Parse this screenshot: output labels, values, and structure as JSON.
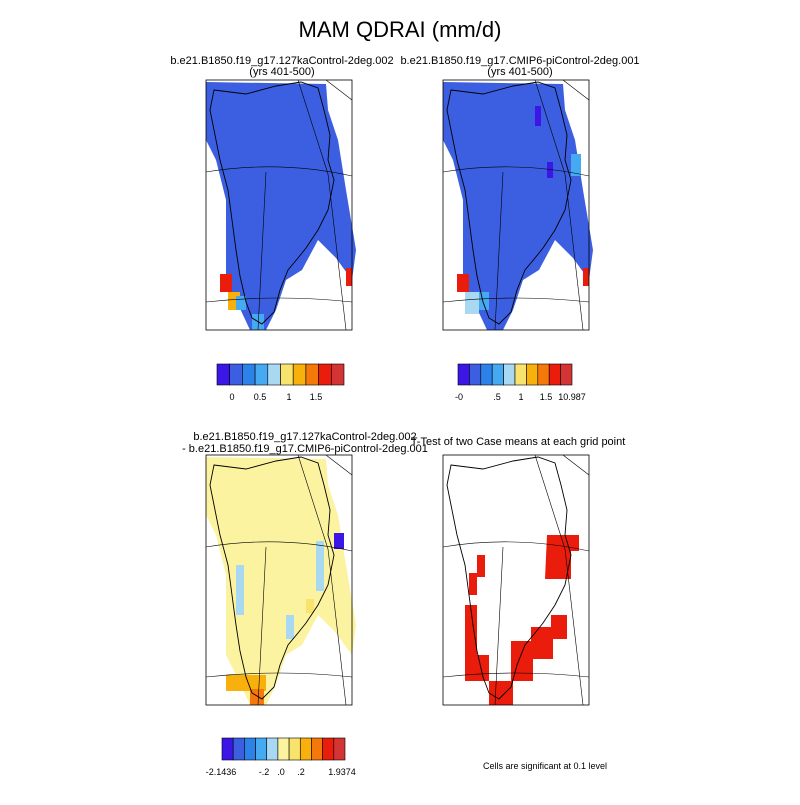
{
  "title": "MAM QDRAI (mm/d)",
  "panels": [
    {
      "title": [
        "b.e21.B1850.f19_g17.127kaControl-2deg.002",
        "(yrs 401-500)"
      ],
      "colorbar": {
        "colors": [
          "#3c16e6",
          "#3b5fe0",
          "#2d82ea",
          "#45aaf2",
          "#a9d9f2",
          "#f8e46c",
          "#f8b00c",
          "#f5780a",
          "#ea1c0c",
          "#d33434"
        ],
        "labels": [
          "0",
          "0.5",
          "1",
          "1.5"
        ]
      }
    },
    {
      "title": [
        "b.e21.B1850.f19_g17.CMIP6-piControl-2deg.001",
        "(yrs 401-500)"
      ],
      "colorbar": {
        "colors": [
          "#3c16e6",
          "#3b5fe0",
          "#2d82ea",
          "#45aaf2",
          "#a9d9f2",
          "#f8e46c",
          "#f8b00c",
          "#f5780a",
          "#ea1c0c",
          "#d33434"
        ],
        "labels": [
          "-0",
          ".5",
          "1",
          "1.5",
          "10.987"
        ]
      }
    },
    {
      "title": [
        "b.e21.B1850.f19_g17.127kaControl-2deg.002",
        "- b.e21.B1850.f19_g17.CMIP6-piControl-2deg.001"
      ],
      "colorbar": {
        "colors": [
          "#3c16e6",
          "#3b5fe0",
          "#2d82ea",
          "#45aaf2",
          "#a9d9f2",
          "#fbf3a0",
          "#f8e46c",
          "#f8b00c",
          "#f5780a",
          "#ea1c0c",
          "#d33434"
        ],
        "labels": [
          "-2.1436",
          "-.2",
          ".0",
          ".2",
          "1.9374"
        ]
      }
    },
    {
      "title": [
        "T-Test of two Case means at each grid point"
      ],
      "note": "Cells are significant at 0.1 level"
    }
  ]
}
